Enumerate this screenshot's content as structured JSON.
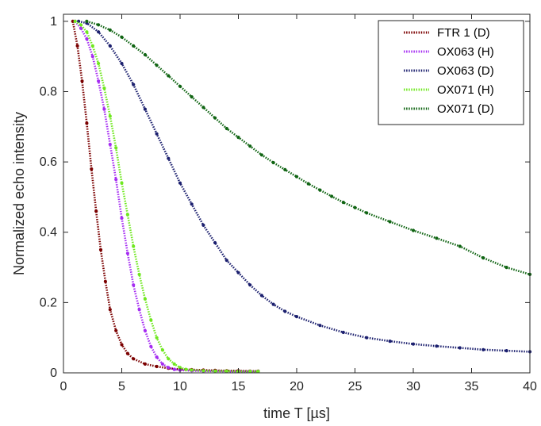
{
  "chart_data": {
    "type": "scatter",
    "xlabel": "time T [µs]",
    "ylabel": "Normalized echo intensity",
    "xlim": [
      0,
      40
    ],
    "ylim": [
      0,
      1.02
    ],
    "xticks": [
      0,
      5,
      10,
      15,
      20,
      25,
      30,
      35,
      40
    ],
    "yticks": [
      0,
      0.2,
      0.4,
      0.6,
      0.8,
      1
    ],
    "grid": false,
    "legend_position": "top-right",
    "series": [
      {
        "name": "FTR 1 (D)",
        "color": "#7b0000",
        "x": [
          0.8,
          1.2,
          1.6,
          2.0,
          2.4,
          2.8,
          3.2,
          3.6,
          4.0,
          4.5,
          5.0,
          5.5,
          6.0,
          7.0,
          8.0,
          9.0,
          10.0,
          11.0,
          12.0,
          13.0,
          14.0,
          15.0,
          16.0,
          16.7
        ],
        "y": [
          1.0,
          0.93,
          0.83,
          0.71,
          0.58,
          0.46,
          0.35,
          0.26,
          0.18,
          0.12,
          0.08,
          0.055,
          0.04,
          0.025,
          0.018,
          0.013,
          0.01,
          0.009,
          0.008,
          0.007,
          0.006,
          0.006,
          0.005,
          0.005
        ]
      },
      {
        "name": "OX063 (H)",
        "color": "#a52cf2",
        "x": [
          1.0,
          1.5,
          2.0,
          2.5,
          3.0,
          3.5,
          4.0,
          4.5,
          5.0,
          5.5,
          6.0,
          6.5,
          7.0,
          7.5,
          8.0,
          8.5,
          9.0,
          9.5,
          10.0,
          11.0,
          12.0,
          13.0,
          14.0,
          15.0,
          16.0,
          16.7
        ],
        "y": [
          1.0,
          0.98,
          0.95,
          0.9,
          0.83,
          0.75,
          0.65,
          0.55,
          0.44,
          0.34,
          0.25,
          0.18,
          0.12,
          0.075,
          0.045,
          0.025,
          0.015,
          0.01,
          0.008,
          0.006,
          0.005,
          0.005,
          0.004,
          0.004,
          0.004,
          0.004
        ]
      },
      {
        "name": "OX063 (D)",
        "color": "#1b1f6e",
        "x": [
          1.3,
          2.0,
          3.0,
          4.0,
          5.0,
          6.0,
          7.0,
          8.0,
          9.0,
          10.0,
          11.0,
          12.0,
          13.0,
          14.0,
          15.0,
          16.0,
          17.0,
          18.0,
          19.0,
          20.0,
          22.0,
          24.0,
          26.0,
          28.0,
          30.0,
          32.0,
          34.0,
          36.0,
          38.0,
          40.0
        ],
        "y": [
          1.0,
          0.995,
          0.97,
          0.93,
          0.88,
          0.82,
          0.75,
          0.68,
          0.61,
          0.54,
          0.48,
          0.42,
          0.37,
          0.32,
          0.285,
          0.25,
          0.22,
          0.195,
          0.175,
          0.16,
          0.135,
          0.115,
          0.1,
          0.09,
          0.082,
          0.076,
          0.071,
          0.066,
          0.063,
          0.06
        ]
      },
      {
        "name": "OX071 (H)",
        "color": "#6fe81f",
        "x": [
          1.0,
          1.5,
          2.0,
          2.5,
          3.0,
          3.5,
          4.0,
          4.5,
          5.0,
          5.5,
          6.0,
          6.5,
          7.0,
          7.5,
          8.0,
          8.5,
          9.0,
          9.5,
          10.0,
          10.5,
          11.0,
          12.0,
          13.0,
          14.0,
          15.0,
          16.0,
          16.7
        ],
        "y": [
          1.0,
          0.99,
          0.97,
          0.93,
          0.88,
          0.81,
          0.73,
          0.64,
          0.54,
          0.45,
          0.36,
          0.28,
          0.21,
          0.15,
          0.1,
          0.065,
          0.04,
          0.025,
          0.015,
          0.01,
          0.008,
          0.006,
          0.005,
          0.005,
          0.004,
          0.004,
          0.004
        ]
      },
      {
        "name": "OX071 (D)",
        "color": "#0f6412",
        "x": [
          2.0,
          3.0,
          4.0,
          5.0,
          6.0,
          7.0,
          8.0,
          9.0,
          10.0,
          11.0,
          12.0,
          13.0,
          14.0,
          15.0,
          16.0,
          17.0,
          18.0,
          19.0,
          20.0,
          21.0,
          22.0,
          23.0,
          24.0,
          25.0,
          26.0,
          28.0,
          30.0,
          32.0,
          34.0,
          36.0,
          38.0,
          40.0
        ],
        "y": [
          1.0,
          0.99,
          0.975,
          0.955,
          0.93,
          0.905,
          0.875,
          0.845,
          0.815,
          0.785,
          0.755,
          0.725,
          0.695,
          0.67,
          0.645,
          0.62,
          0.598,
          0.578,
          0.558,
          0.538,
          0.52,
          0.502,
          0.485,
          0.47,
          0.455,
          0.43,
          0.405,
          0.383,
          0.36,
          0.327,
          0.3,
          0.28
        ]
      }
    ]
  }
}
